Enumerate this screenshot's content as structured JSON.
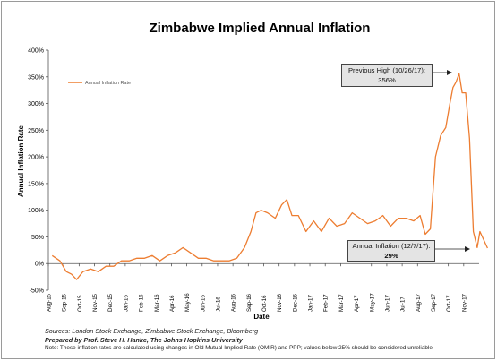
{
  "chart_data": {
    "type": "line",
    "title": "Zimbabwe Implied Annual Inflation",
    "xlabel": "Date",
    "ylabel": "Annual Inflation Rate",
    "ylim": [
      -50,
      400
    ],
    "yticks": [
      "-50%",
      "0%",
      "50%",
      "100%",
      "150%",
      "200%",
      "250%",
      "300%",
      "350%",
      "400%"
    ],
    "xticks": [
      "Aug-15",
      "Sep-15",
      "Oct-15",
      "Nov-15",
      "Dec-15",
      "Jan-16",
      "Feb-16",
      "Mar-16",
      "Apr-16",
      "May-16",
      "Jun-16",
      "Jul-16",
      "Aug-16",
      "Sep-16",
      "Oct-16",
      "Nov-16",
      "Dec-16",
      "Jan-17",
      "Feb-17",
      "Mar-17",
      "Apr-17",
      "May-17",
      "Jun-17",
      "Jul-17",
      "Aug-17",
      "Sep-17",
      "Oct-17",
      "Nov-17"
    ],
    "grid": false,
    "legend": "top-left",
    "series": [
      {
        "name": "Annual Inflation Rate",
        "color": "#ED7D31",
        "x": [
          "Aug-15",
          "Aug-15",
          "Sep-15",
          "Sep-15",
          "Sep-15",
          "Oct-15",
          "Oct-15",
          "Nov-15",
          "Nov-15",
          "Dec-15",
          "Dec-15",
          "Jan-16",
          "Jan-16",
          "Feb-16",
          "Feb-16",
          "Mar-16",
          "Mar-16",
          "Apr-16",
          "Apr-16",
          "May-16",
          "May-16",
          "Jun-16",
          "Jun-16",
          "Jul-16",
          "Jul-16",
          "Aug-16",
          "Aug-16",
          "Sep-16",
          "Sep-16",
          "Sep-16",
          "Oct-16",
          "Oct-16",
          "Nov-16",
          "Nov-16",
          "Nov-16",
          "Dec-16",
          "Dec-16",
          "Jan-17",
          "Jan-17",
          "Feb-17",
          "Feb-17",
          "Mar-17",
          "Mar-17",
          "Apr-17",
          "Apr-17",
          "May-17",
          "May-17",
          "Jun-17",
          "Jun-17",
          "Jul-17",
          "Jul-17",
          "Aug-17",
          "Aug-17",
          "Aug-17",
          "Sep-17",
          "Sep-17",
          "Sep-17",
          "Oct-17",
          "Oct-17",
          "Oct-17",
          "Oct-17",
          "Oct-17",
          "Nov-17",
          "Nov-17",
          "Nov-17",
          "Nov-17",
          "Dec-17",
          "Dec-17"
        ],
        "y": [
          15,
          5,
          -15,
          -20,
          -30,
          -15,
          -10,
          -15,
          -5,
          -5,
          5,
          5,
          10,
          10,
          15,
          5,
          15,
          20,
          30,
          20,
          10,
          10,
          5,
          5,
          5,
          10,
          30,
          60,
          95,
          100,
          95,
          85,
          110,
          120,
          90,
          90,
          60,
          80,
          60,
          85,
          70,
          75,
          95,
          85,
          75,
          80,
          90,
          70,
          85,
          85,
          80,
          90,
          55,
          65,
          200,
          240,
          255,
          300,
          330,
          340,
          356,
          320,
          320,
          235,
          60,
          30,
          60,
          29
        ]
      }
    ],
    "annotations": [
      {
        "label": "Previous High (10/26/17):",
        "value": "356%"
      },
      {
        "label": "Annual Inflation (12/7/17):",
        "value": "29%"
      }
    ]
  },
  "sources": {
    "line1": "Sources: London Stock Exchange, Zimbabwe Stock Exchange, Bloomberg",
    "line2": "Prepared by Prof. Steve H. Hanke, The Johns Hopkins University",
    "line3": "Note: These inflation rates are calculated using changes in Old Mutual Implied Rate (OMIR) and PPP; values below 25% should be considered unreliable"
  }
}
